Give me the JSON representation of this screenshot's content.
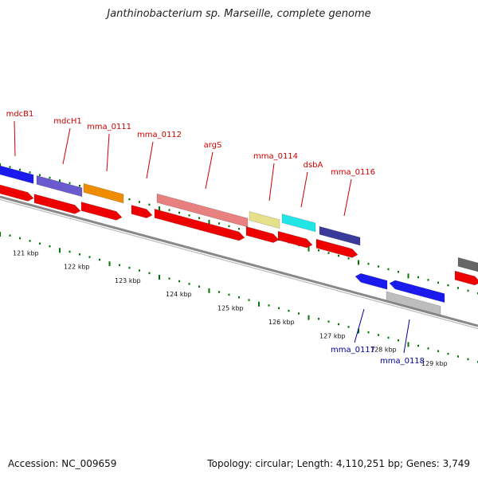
{
  "title": "Janthinobacterium sp. Marseille, complete genome",
  "footer": {
    "accession": "Accession: NC_009659",
    "stats": "Topology: circular; Length: 4,110,251 bp; Genes: 3,749"
  },
  "colors": {
    "forward_label": "#cc0000",
    "reverse_label": "#000099",
    "ticks": "#007700",
    "backbone": "#888888"
  },
  "ruler": {
    "labels": [
      "121 kbp",
      "122 kbp",
      "123 kbp",
      "124 kbp",
      "125 kbp",
      "126 kbp",
      "127 kbp",
      "128 kbp",
      "129 kbp"
    ]
  },
  "genes": {
    "labeled": [
      {
        "name": "mdcB1",
        "strand": "forward",
        "color": "blue"
      },
      {
        "name": "mdcH1",
        "strand": "forward",
        "color": "slate-blue"
      },
      {
        "name": "mma_0111",
        "strand": "forward",
        "color": "orange"
      },
      {
        "name": "mma_0112",
        "strand": "forward",
        "color": "red"
      },
      {
        "name": "argS",
        "strand": "forward",
        "color": "salmon"
      },
      {
        "name": "mma_0114",
        "strand": "forward",
        "color": "khaki"
      },
      {
        "name": "dsbA",
        "strand": "forward",
        "color": "cyan"
      },
      {
        "name": "mma_0116",
        "strand": "forward",
        "color": "navy-lavender"
      },
      {
        "name": "mma_0117",
        "strand": "reverse",
        "color": "blue"
      },
      {
        "name": "mma_0118",
        "strand": "reverse",
        "color": "blue"
      }
    ]
  }
}
